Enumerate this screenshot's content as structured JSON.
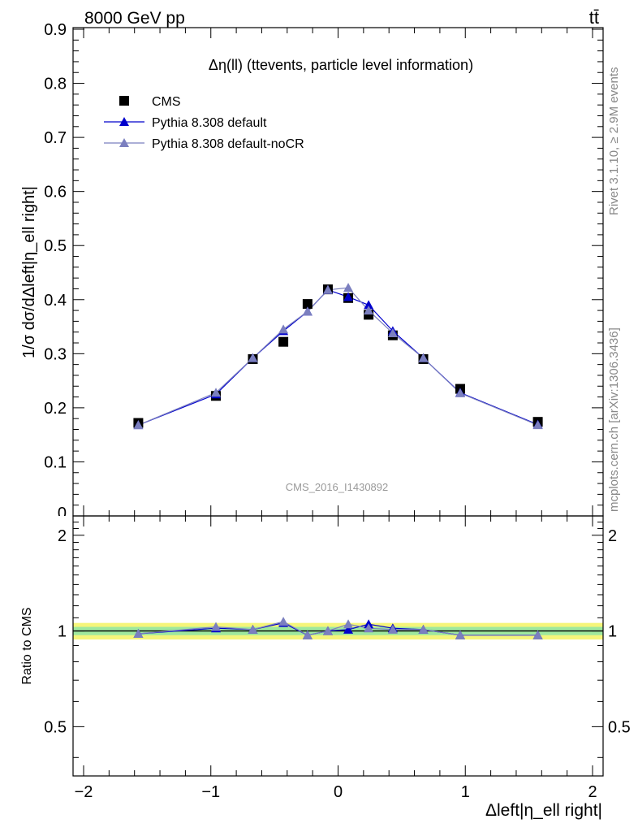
{
  "header": {
    "energy_label": "8000 GeV pp",
    "process_label": "tt̄",
    "rivet_label": "Rivet 3.1.10, ≥ 2.9M events",
    "source_label": "mcplots.cern.ch [arXiv:1306.3436]",
    "analysis_label": "CMS_2016_I1430892"
  },
  "chart_data": [
    {
      "type": "scatter",
      "panel": "main",
      "title": "Δη(ll) (ttevents, particle level information)",
      "ylabel": "1/σ dσ/dΔleft|η_ell right|",
      "ylim": [
        0,
        0.9
      ],
      "xlim": [
        -2,
        2
      ],
      "yticks": [
        0.1,
        0.2,
        0.3,
        0.4,
        0.5,
        0.6,
        0.7,
        0.8,
        0.9
      ],
      "ytick_labels": [
        "0.1",
        "0.2",
        "0.3",
        "0.4",
        "0.5",
        "0.6",
        "0.7",
        "0.8",
        "0.9"
      ],
      "legend_position": "top-left",
      "x": [
        -1.57,
        -0.96,
        -0.67,
        -0.43,
        -0.24,
        -0.08,
        0.08,
        0.24,
        0.43,
        0.67,
        0.96,
        1.57
      ],
      "series": [
        {
          "name": "CMS",
          "marker": "square",
          "color": "#000000",
          "values": [
            0.172,
            0.222,
            0.29,
            0.322,
            0.392,
            0.419,
            0.403,
            0.372,
            0.334,
            0.29,
            0.235,
            0.174
          ]
        },
        {
          "name": "Pythia 8.308 default",
          "marker": "triangle",
          "color": "#0000cc",
          "values": [
            0.168,
            0.225,
            0.292,
            0.342,
            0.378,
            0.418,
            0.405,
            0.39,
            0.342,
            0.292,
            0.228,
            0.169
          ]
        },
        {
          "name": "Pythia 8.308 default-noCR",
          "marker": "triangle",
          "color": "#7b7fbf",
          "values": [
            0.168,
            0.228,
            0.292,
            0.345,
            0.378,
            0.418,
            0.422,
            0.38,
            0.338,
            0.292,
            0.227,
            0.168
          ]
        }
      ]
    },
    {
      "type": "scatter",
      "panel": "ratio",
      "ylabel": "Ratio to CMS",
      "xlabel": "Δleft|η_ell right|",
      "xlim": [
        -2,
        2
      ],
      "ylim": [
        0.35,
        2.3
      ],
      "xticks": [
        -2,
        -1,
        0,
        1,
        2
      ],
      "xtick_labels": [
        "−2",
        "−1",
        "0",
        "1",
        "2"
      ],
      "yticks": [
        0.5,
        1,
        2
      ],
      "ytick_labels": [
        "0.5",
        "1",
        "2"
      ],
      "band_yellow": [
        0.94,
        1.06
      ],
      "band_green": [
        0.97,
        1.03
      ],
      "x": [
        -1.57,
        -0.96,
        -0.67,
        -0.43,
        -0.24,
        -0.08,
        0.08,
        0.24,
        0.43,
        0.67,
        0.96,
        1.57
      ],
      "series": [
        {
          "name": "Pythia 8.308 default",
          "color": "#0000cc",
          "values": [
            0.98,
            1.02,
            1.01,
            1.06,
            0.97,
            1.0,
            1.01,
            1.05,
            1.02,
            1.01,
            0.97,
            0.97
          ]
        },
        {
          "name": "Pythia 8.308 default-noCR",
          "color": "#7b7fbf",
          "values": [
            0.98,
            1.03,
            1.01,
            1.07,
            0.97,
            1.0,
            1.05,
            1.02,
            1.01,
            1.01,
            0.97,
            0.97
          ]
        }
      ]
    }
  ]
}
